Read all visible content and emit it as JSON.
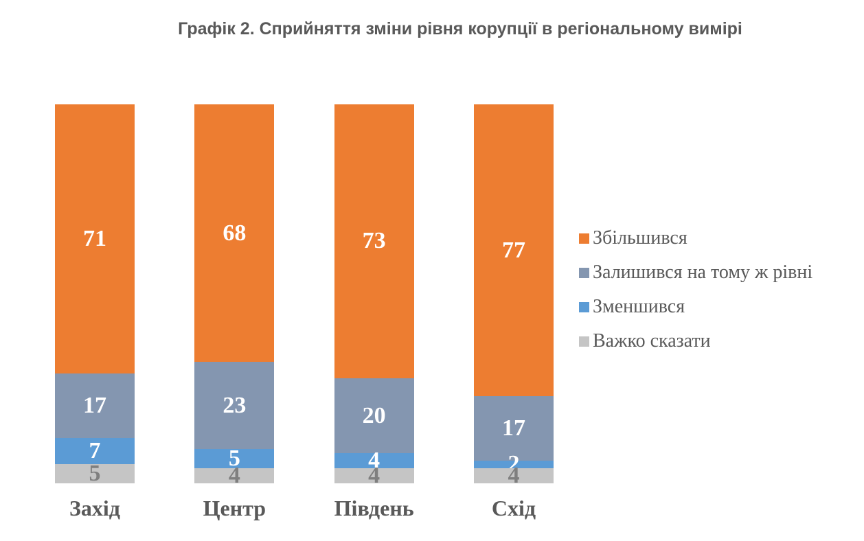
{
  "title": "Графік 2. Сприйняття зміни рівня корупції в регіональному вимірі",
  "chart_data": {
    "type": "bar",
    "subtype": "stacked-100-percent-column",
    "title": "Графік 2. Сприйняття зміни рівня корупції в регіональному вимірі",
    "categories": [
      "Захід",
      "Центр",
      "Південь",
      "Схід"
    ],
    "series": [
      {
        "name": "Збільшився",
        "color": "#ED7D31",
        "label_color": "#FFFFFF",
        "values": [
          71,
          68,
          73,
          77
        ]
      },
      {
        "name": "Залишився на тому ж рівні",
        "color": "#8496B0",
        "label_color": "#FFFFFF",
        "values": [
          17,
          23,
          20,
          17
        ]
      },
      {
        "name": "Зменшився",
        "color": "#5B9BD5",
        "label_color": "#FFFFFF",
        "values": [
          7,
          5,
          4,
          2
        ]
      },
      {
        "name": "Важко сказати",
        "color": "#C5C5C5",
        "label_color": "#7F7F7F",
        "values": [
          5,
          4,
          4,
          4
        ]
      }
    ],
    "value_labels": true,
    "legend_position": "right",
    "grid": false,
    "axes_visible": false,
    "xlabel": "",
    "ylabel": "",
    "ylim": [
      0,
      100
    ]
  },
  "colors": {
    "background": "#FFFFFF",
    "title_text": "#595959",
    "axis_text": "#595959",
    "legend_text": "#595959"
  }
}
